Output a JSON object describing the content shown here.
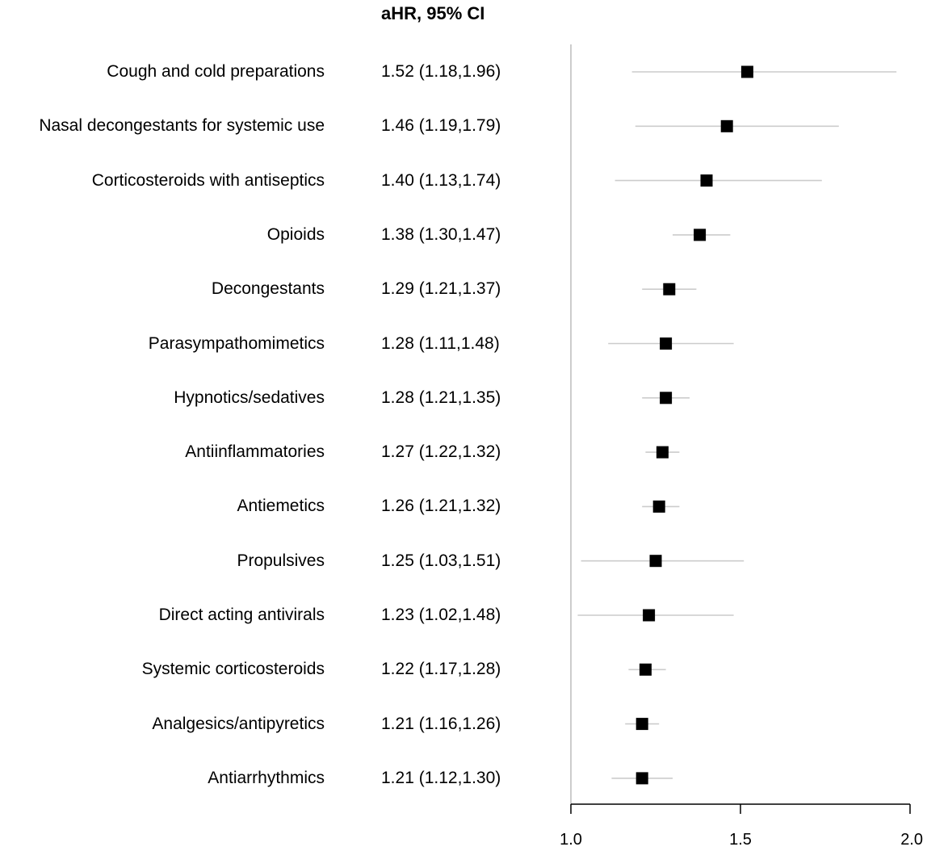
{
  "chart_data": {
    "type": "forest",
    "column_header": "aHR, 95% CI",
    "title": "",
    "xlabel": "",
    "xlim": [
      1.0,
      2.0
    ],
    "xticks": [
      1.0,
      1.5,
      2.0
    ],
    "xtick_labels": [
      "1.0",
      "1.5",
      "2.0"
    ],
    "reference_line": 1.0,
    "rows": [
      {
        "label": "Cough and cold preparations",
        "text": "1.52 (1.18,1.96)",
        "estimate": 1.52,
        "lower": 1.18,
        "upper": 1.96
      },
      {
        "label": "Nasal decongestants for systemic use",
        "text": "1.46 (1.19,1.79)",
        "estimate": 1.46,
        "lower": 1.19,
        "upper": 1.79
      },
      {
        "label": "Corticosteroids with antiseptics",
        "text": "1.40 (1.13,1.74)",
        "estimate": 1.4,
        "lower": 1.13,
        "upper": 1.74
      },
      {
        "label": "Opioids",
        "text": "1.38 (1.30,1.47)",
        "estimate": 1.38,
        "lower": 1.3,
        "upper": 1.47
      },
      {
        "label": "Decongestants",
        "text": "1.29 (1.21,1.37)",
        "estimate": 1.29,
        "lower": 1.21,
        "upper": 1.37
      },
      {
        "label": "Parasympathomimetics",
        "text": "1.28 (1.11,1.48)",
        "estimate": 1.28,
        "lower": 1.11,
        "upper": 1.48
      },
      {
        "label": "Hypnotics/sedatives",
        "text": "1.28 (1.21,1.35)",
        "estimate": 1.28,
        "lower": 1.21,
        "upper": 1.35
      },
      {
        "label": "Antiinflammatories",
        "text": "1.27 (1.22,1.32)",
        "estimate": 1.27,
        "lower": 1.22,
        "upper": 1.32
      },
      {
        "label": "Antiemetics",
        "text": "1.26 (1.21,1.32)",
        "estimate": 1.26,
        "lower": 1.21,
        "upper": 1.32
      },
      {
        "label": "Propulsives",
        "text": "1.25 (1.03,1.51)",
        "estimate": 1.25,
        "lower": 1.03,
        "upper": 1.51
      },
      {
        "label": "Direct acting antivirals",
        "text": "1.23 (1.02,1.48)",
        "estimate": 1.23,
        "lower": 1.02,
        "upper": 1.48
      },
      {
        "label": "Systemic corticosteroids",
        "text": "1.22 (1.17,1.28)",
        "estimate": 1.22,
        "lower": 1.17,
        "upper": 1.28
      },
      {
        "label": "Analgesics/antipyretics",
        "text": "1.21 (1.16,1.26)",
        "estimate": 1.21,
        "lower": 1.16,
        "upper": 1.26
      },
      {
        "label": "Antiarrhythmics",
        "text": "1.21 (1.12,1.30)",
        "estimate": 1.21,
        "lower": 1.12,
        "upper": 1.3
      }
    ],
    "colors": {
      "marker": "#000000",
      "ci_line": "#cccccc",
      "reference_line": "#bbbbbb",
      "axis": "#000000"
    }
  }
}
